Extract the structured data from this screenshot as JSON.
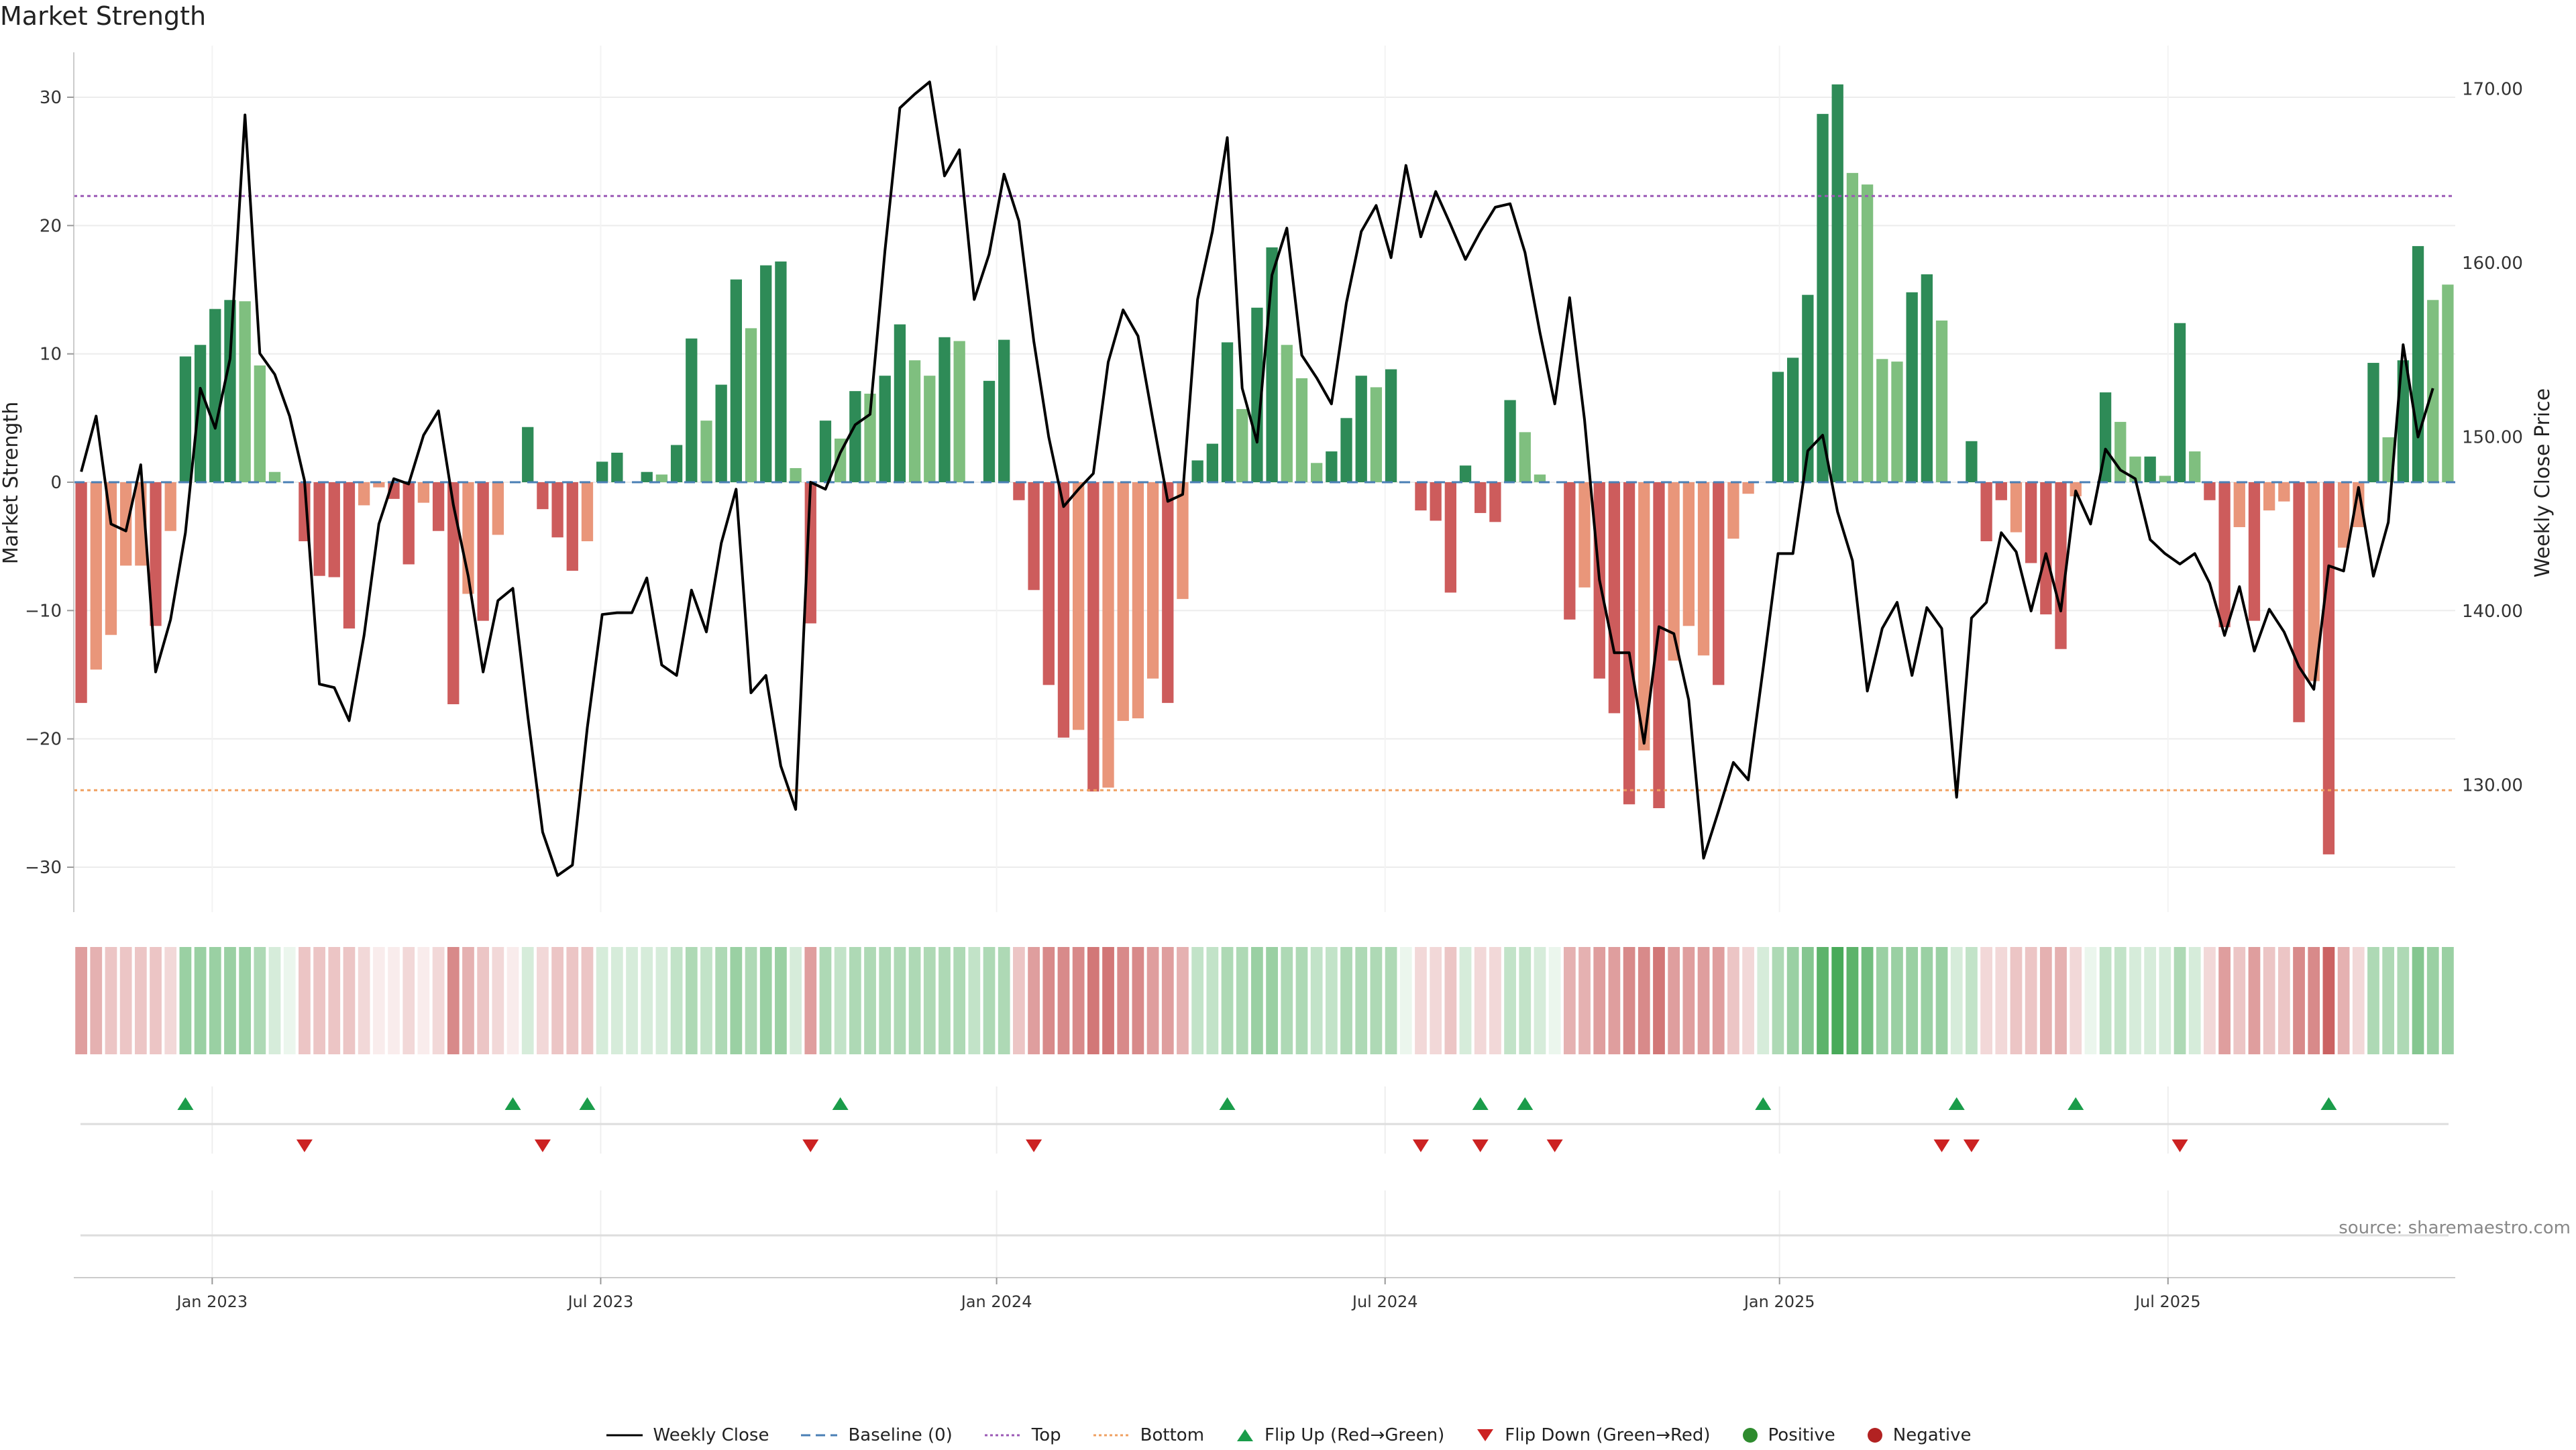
{
  "title": "Market Strength",
  "source_text": "source: sharemaestro.com",
  "colors": {
    "strong_green": "#2e8b57",
    "light_green": "#7fbf7f",
    "strong_red": "#cd5c5c",
    "light_red": "#e9967a",
    "price_line": "#000000",
    "baseline": "#4a7fb5",
    "top_line": "#9b59b6",
    "bottom_line": "#f0a060",
    "flip_up": "#1a9c4a",
    "flip_down": "#cc2222",
    "positive": "#2e8b2e",
    "negative": "#b22222"
  },
  "legend": [
    {
      "key": "weekly_close",
      "label": "Weekly Close"
    },
    {
      "key": "baseline",
      "label": "Baseline (0)"
    },
    {
      "key": "top",
      "label": "Top"
    },
    {
      "key": "bottom",
      "label": "Bottom"
    },
    {
      "key": "flip_up",
      "label": "Flip Up (Red→Green)"
    },
    {
      "key": "flip_down",
      "label": "Flip Down (Green→Red)"
    },
    {
      "key": "positive",
      "label": "Positive"
    },
    {
      "key": "negative",
      "label": "Negative"
    }
  ],
  "chart_data": {
    "type": "bar",
    "title": "Market Strength",
    "ylabel": "Market Strength",
    "y2label": "Weekly Close Price",
    "ylim": [
      -33.5,
      33.5
    ],
    "y2lim": [
      122.7,
      172.1
    ],
    "yticks": [
      "30",
      "20",
      "10",
      "0",
      "−10",
      "−20",
      "−30"
    ],
    "ytick_values": [
      30,
      20,
      10,
      0,
      -10,
      -20,
      -30
    ],
    "y2ticks": [
      "170.00",
      "160.00",
      "150.00",
      "140.00",
      "130.00"
    ],
    "y2tick_values": [
      170,
      160,
      150,
      140,
      130
    ],
    "xticks": [
      "Jan 2023",
      "Jul 2023",
      "Jan 2024",
      "Jul 2024",
      "Jan 2025",
      "Jul 2025"
    ],
    "xtick_weeks": [
      8.8,
      34.9,
      61.5,
      87.6,
      114.1,
      140.2
    ],
    "top_threshold": 22.3,
    "bottom_threshold": -24.0,
    "strength": [
      -17.2,
      -14.6,
      -11.9,
      -6.5,
      -6.5,
      -11.2,
      -3.8,
      9.8,
      10.7,
      13.5,
      14.2,
      14.1,
      9.1,
      0.8,
      0.0,
      -4.6,
      -7.3,
      -7.4,
      -11.4,
      -1.8,
      -0.4,
      -1.3,
      -6.4,
      -1.6,
      -3.8,
      -17.3,
      -8.7,
      -10.8,
      -4.1,
      0.0,
      4.3,
      -2.1,
      -4.3,
      -6.9,
      -4.6,
      1.6,
      2.3,
      0.0,
      0.8,
      0.6,
      2.9,
      11.2,
      4.8,
      7.6,
      15.8,
      12.0,
      16.9,
      17.2,
      1.1,
      -11.0,
      4.8,
      3.4,
      7.1,
      6.9,
      8.3,
      12.3,
      9.5,
      8.3,
      11.3,
      11.0,
      0.0,
      7.9,
      11.1,
      -1.4,
      -8.4,
      -15.8,
      -19.9,
      -19.3,
      -24.1,
      -23.8,
      -18.6,
      -18.4,
      -15.3,
      -17.2,
      -9.1,
      1.7,
      3.0,
      10.9,
      5.7,
      13.6,
      18.3,
      10.7,
      8.1,
      1.5,
      2.4,
      5.0,
      8.3,
      7.4,
      8.8,
      0.0,
      -2.2,
      -3.0,
      -8.6,
      1.3,
      -2.4,
      -3.1,
      6.4,
      3.9,
      0.6,
      0.0,
      -10.7,
      -8.2,
      -15.3,
      -18.0,
      -25.1,
      -20.9,
      -25.4,
      -13.9,
      -11.2,
      -13.5,
      -15.8,
      -4.4,
      -0.9,
      0.0,
      8.6,
      9.7,
      14.6,
      28.7,
      31.0,
      24.1,
      23.2,
      9.6,
      9.4,
      14.8,
      16.2,
      12.6,
      0.0,
      3.2,
      -4.6,
      -1.4,
      -3.9,
      -6.3,
      -10.3,
      -13.0,
      -1.1,
      0.0,
      7.0,
      4.7,
      2.0,
      2.0,
      0.5,
      12.4,
      2.4,
      -1.4,
      -11.3,
      -3.5,
      -10.8,
      -2.2,
      -1.5,
      -18.7,
      -15.5,
      -29.0,
      -5.1,
      -3.5,
      9.3,
      3.5,
      9.5,
      18.4,
      14.2,
      15.4
    ],
    "strength_shade": [
      1,
      0,
      0,
      0,
      0,
      1,
      0,
      1,
      1,
      1,
      1,
      0,
      0,
      0,
      0,
      1,
      1,
      1,
      1,
      0,
      0,
      1,
      1,
      0,
      1,
      1,
      0,
      1,
      0,
      0,
      1,
      1,
      1,
      1,
      0,
      1,
      1,
      0,
      1,
      0,
      1,
      1,
      0,
      1,
      1,
      0,
      1,
      1,
      0,
      1,
      1,
      0,
      1,
      0,
      1,
      1,
      0,
      0,
      1,
      0,
      0,
      1,
      1,
      1,
      1,
      1,
      1,
      0,
      1,
      0,
      0,
      0,
      0,
      1,
      0,
      1,
      1,
      1,
      0,
      1,
      1,
      0,
      0,
      0,
      1,
      1,
      1,
      0,
      1,
      0,
      1,
      1,
      1,
      1,
      1,
      1,
      1,
      0,
      0,
      0,
      1,
      0,
      1,
      1,
      1,
      0,
      1,
      0,
      0,
      0,
      1,
      0,
      0,
      0,
      1,
      1,
      1,
      1,
      1,
      0,
      0,
      0,
      0,
      1,
      1,
      0,
      0,
      1,
      1,
      1,
      0,
      1,
      1,
      1,
      0,
      0,
      1,
      0,
      0,
      1,
      0,
      1,
      0,
      1,
      1,
      0,
      1,
      0,
      0,
      1,
      0,
      1,
      0,
      0,
      1,
      0,
      1,
      1,
      0,
      0,
      1
    ],
    "weekly_close": [
      148.0,
      151.2,
      145.0,
      144.6,
      148.4,
      136.5,
      139.5,
      144.5,
      152.8,
      150.5,
      154.5,
      168.5,
      154.8,
      153.6,
      151.2,
      147.5,
      135.8,
      135.6,
      133.7,
      138.6,
      145.0,
      147.6,
      147.3,
      150.1,
      151.5,
      146.1,
      142.0,
      136.5,
      140.6,
      141.3,
      134.0,
      127.3,
      124.8,
      125.4,
      133.3,
      139.8,
      139.9,
      139.9,
      141.9,
      136.9,
      136.3,
      141.2,
      138.8,
      143.9,
      147.0,
      135.3,
      136.3,
      131.1,
      128.6,
      147.4,
      147.0,
      149.1,
      150.7,
      151.3,
      160.7,
      168.9,
      169.7,
      170.4,
      165.0,
      166.5,
      157.9,
      160.5,
      165.1,
      162.4,
      155.5,
      150.0,
      146.0,
      147.0,
      147.9,
      154.3,
      157.3,
      155.8,
      151.0,
      146.3,
      146.7,
      157.9,
      161.8,
      167.2,
      152.8,
      149.7,
      159.3,
      162.0,
      154.7,
      153.4,
      151.9,
      157.7,
      161.8,
      163.3,
      160.3,
      165.6,
      161.5,
      164.1,
      162.2,
      160.2,
      161.8,
      163.2,
      163.4,
      160.6,
      156.0,
      151.9,
      158.0,
      151.0,
      141.8,
      137.6,
      137.6,
      132.4,
      139.1,
      138.7,
      134.9,
      125.8,
      128.5,
      131.3,
      130.3,
      136.7,
      143.3,
      143.3,
      149.2,
      150.1,
      145.7,
      142.9,
      135.4,
      139.0,
      140.5,
      136.3,
      140.2,
      139.0,
      129.3,
      139.6,
      140.5,
      144.5,
      143.4,
      140.0,
      143.3,
      140.0,
      146.9,
      145.0,
      149.3,
      148.1,
      147.6,
      144.1,
      143.3,
      142.7,
      143.3,
      141.6,
      138.6,
      141.4,
      137.7,
      140.1,
      138.8,
      136.8,
      135.5,
      142.6,
      142.3,
      147.1,
      142.0,
      145.1,
      155.3,
      150.0,
      152.8
    ],
    "heat": [
      -0.5,
      -0.4,
      -0.3,
      -0.3,
      -0.3,
      -0.3,
      -0.2,
      0.5,
      0.5,
      0.5,
      0.5,
      0.5,
      0.4,
      0.2,
      0.1,
      -0.3,
      -0.3,
      -0.3,
      -0.3,
      -0.2,
      -0.1,
      -0.1,
      -0.2,
      -0.1,
      -0.2,
      -0.6,
      -0.4,
      -0.3,
      -0.2,
      -0.1,
      0.2,
      -0.2,
      -0.3,
      -0.3,
      -0.3,
      0.2,
      0.2,
      0.2,
      0.2,
      0.2,
      0.3,
      0.4,
      0.3,
      0.4,
      0.5,
      0.4,
      0.5,
      0.5,
      0.2,
      -0.5,
      0.4,
      0.3,
      0.4,
      0.4,
      0.4,
      0.4,
      0.4,
      0.4,
      0.4,
      0.4,
      0.3,
      0.4,
      0.4,
      -0.3,
      -0.5,
      -0.6,
      -0.6,
      -0.6,
      -0.7,
      -0.7,
      -0.6,
      -0.6,
      -0.5,
      -0.5,
      -0.4,
      0.3,
      0.3,
      0.4,
      0.4,
      0.5,
      0.5,
      0.4,
      0.4,
      0.3,
      0.3,
      0.4,
      0.4,
      0.4,
      0.4,
      0.1,
      -0.2,
      -0.2,
      -0.3,
      0.2,
      -0.2,
      -0.2,
      0.3,
      0.3,
      0.2,
      0.1,
      -0.4,
      -0.4,
      -0.5,
      -0.5,
      -0.6,
      -0.6,
      -0.7,
      -0.5,
      -0.5,
      -0.5,
      -0.5,
      -0.3,
      -0.2,
      0.2,
      0.4,
      0.5,
      0.6,
      0.8,
      0.9,
      0.8,
      0.7,
      0.5,
      0.5,
      0.5,
      0.5,
      0.5,
      0.2,
      0.3,
      -0.2,
      -0.2,
      -0.3,
      -0.3,
      -0.4,
      -0.4,
      -0.2,
      0.1,
      0.3,
      0.3,
      0.2,
      0.2,
      0.2,
      0.4,
      0.2,
      -0.2,
      -0.5,
      -0.3,
      -0.5,
      -0.3,
      -0.3,
      -0.6,
      -0.6,
      -0.8,
      -0.4,
      -0.2,
      0.4,
      0.4,
      0.4,
      0.6,
      0.5,
      0.5
    ],
    "flip_up_weeks": [
      7,
      29,
      34,
      51,
      77,
      94,
      97,
      113,
      126,
      134,
      151
    ],
    "flip_down_weeks": [
      15,
      31,
      49,
      64,
      90,
      94,
      99,
      125,
      127,
      141
    ],
    "legend_position": "bottom-center"
  }
}
